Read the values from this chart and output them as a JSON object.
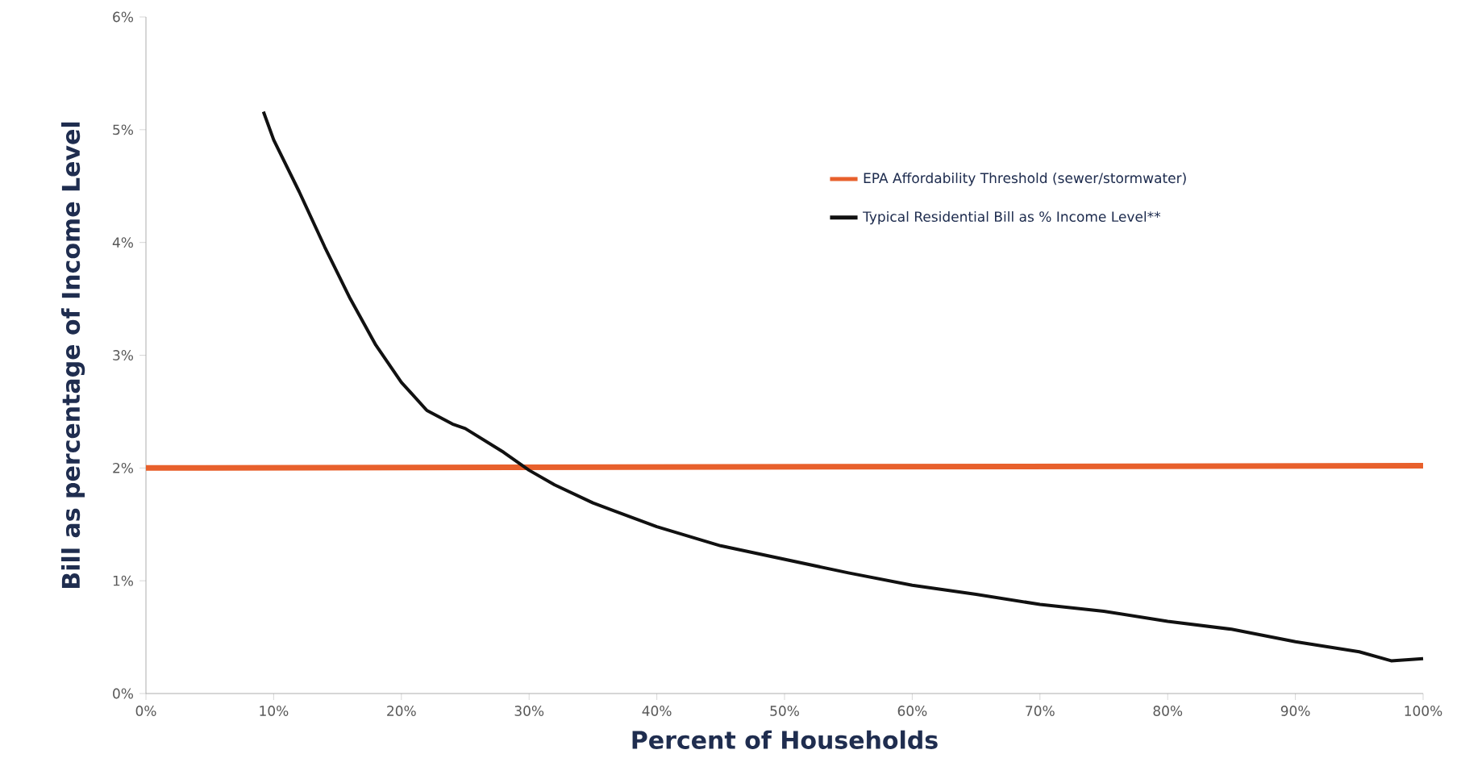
{
  "chart_data": {
    "type": "line",
    "xlabel": "Percent of Households",
    "ylabel": "Bill as percentage of Income Level",
    "xlim": [
      0,
      100
    ],
    "ylim": [
      0,
      6
    ],
    "xticks": [
      {
        "value": 0,
        "label": "0%"
      },
      {
        "value": 10,
        "label": "10%"
      },
      {
        "value": 20,
        "label": "20%"
      },
      {
        "value": 30,
        "label": "30%"
      },
      {
        "value": 40,
        "label": "40%"
      },
      {
        "value": 50,
        "label": "50%"
      },
      {
        "value": 60,
        "label": "60%"
      },
      {
        "value": 70,
        "label": "70%"
      },
      {
        "value": 80,
        "label": "80%"
      },
      {
        "value": 90,
        "label": "90%"
      },
      {
        "value": 100,
        "label": "100%"
      }
    ],
    "yticks": [
      {
        "value": 0,
        "label": "0%"
      },
      {
        "value": 1,
        "label": "1%"
      },
      {
        "value": 2,
        "label": "2%"
      },
      {
        "value": 3,
        "label": "3%"
      },
      {
        "value": 4,
        "label": "4%"
      },
      {
        "value": 5,
        "label": "5%"
      },
      {
        "value": 6,
        "label": "6%"
      }
    ],
    "legend": "top right",
    "marker": "none",
    "line_style": "solid",
    "series": [
      {
        "name": "EPA Affordability Threshold (sewer/stormwater)",
        "color": "#e8602c",
        "x": [
          0,
          100
        ],
        "values": [
          2.0,
          2.02
        ]
      },
      {
        "name": "Typical Residential Bill as % Income Level**",
        "color": "#111111",
        "x": [
          9.2,
          10,
          12,
          14,
          16,
          18,
          20,
          22,
          24,
          25,
          28,
          30,
          32,
          35,
          40,
          45,
          50,
          55,
          60,
          65,
          70,
          75,
          80,
          85,
          90,
          95,
          97.5,
          100
        ],
        "values": [
          5.16,
          4.91,
          4.45,
          3.96,
          3.5,
          3.09,
          2.76,
          2.51,
          2.39,
          2.35,
          2.14,
          1.98,
          1.85,
          1.69,
          1.48,
          1.31,
          1.19,
          1.07,
          0.96,
          0.88,
          0.79,
          0.73,
          0.64,
          0.57,
          0.46,
          0.37,
          0.29,
          0.31
        ]
      }
    ]
  }
}
